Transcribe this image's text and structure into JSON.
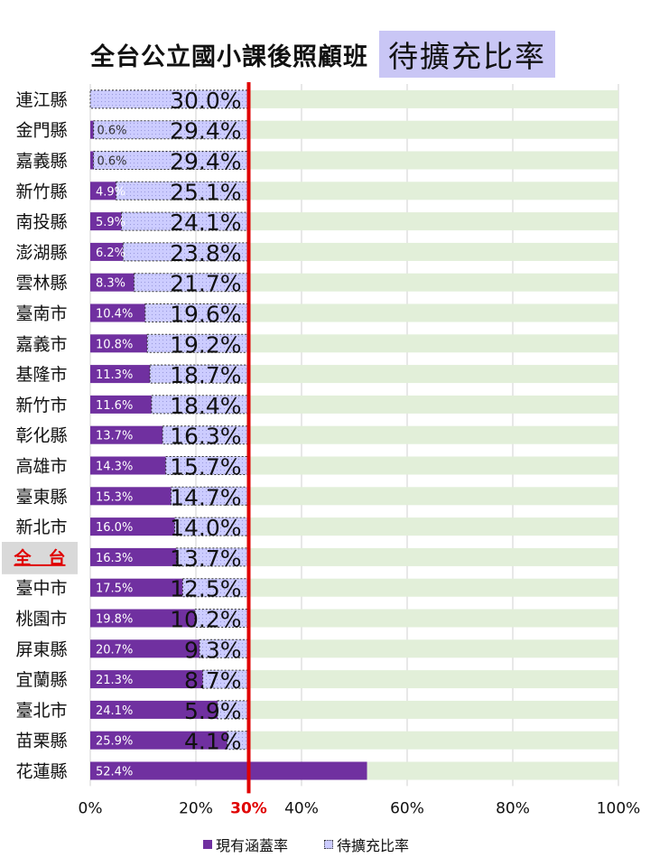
{
  "title": {
    "main": "全台公立國小課後照顧班",
    "highlight": "待擴充比率"
  },
  "colors": {
    "current": "#7030a0",
    "expand": "#ccccff",
    "track": "#e2efd9",
    "target_line": "#e00000",
    "highlight_bg": "#c9c6f5",
    "total_row_bg": "#d9d9d9",
    "total_label": "#e00000"
  },
  "chart_data": {
    "type": "bar",
    "orientation": "horizontal",
    "stacked": true,
    "categories": [
      "連江縣",
      "金門縣",
      "嘉義縣",
      "新竹縣",
      "南投縣",
      "澎湖縣",
      "雲林縣",
      "臺南市",
      "嘉義市",
      "基隆市",
      "新竹市",
      "彰化縣",
      "高雄市",
      "臺東縣",
      "新北市",
      "全　台",
      "臺中市",
      "桃園市",
      "屏東縣",
      "宜蘭縣",
      "臺北市",
      "苗栗縣",
      "花蓮縣"
    ],
    "highlight_category": "全　台",
    "series": [
      {
        "name": "現有涵蓋率",
        "values": [
          0.0,
          0.6,
          0.6,
          4.9,
          5.9,
          6.2,
          8.3,
          10.4,
          10.8,
          11.3,
          11.6,
          13.7,
          14.3,
          15.3,
          16.0,
          16.3,
          17.5,
          19.8,
          20.7,
          21.3,
          24.1,
          25.9,
          52.4
        ],
        "labels": [
          "",
          "0.6%",
          "0.6%",
          "4.9%",
          "5.9%",
          "6.2%",
          "8.3%",
          "10.4%",
          "10.8%",
          "11.3%",
          "11.6%",
          "13.7%",
          "14.3%",
          "15.3%",
          "16.0%",
          "16.3%",
          "17.5%",
          "19.8%",
          "20.7%",
          "21.3%",
          "24.1%",
          "25.9%",
          "52.4%"
        ]
      },
      {
        "name": "待擴充比率",
        "values": [
          30.0,
          29.4,
          29.4,
          25.1,
          24.1,
          23.8,
          21.7,
          19.6,
          19.2,
          18.7,
          18.4,
          16.3,
          15.7,
          14.7,
          14.0,
          13.7,
          12.5,
          10.2,
          9.3,
          8.7,
          5.9,
          4.1,
          0
        ],
        "labels": [
          "30.0%",
          "29.4%",
          "29.4%",
          "25.1%",
          "24.1%",
          "23.8%",
          "21.7%",
          "19.6%",
          "19.2%",
          "18.7%",
          "18.4%",
          "16.3%",
          "15.7%",
          "14.7%",
          "14.0%",
          "13.7%",
          "12.5%",
          "10.2%",
          "9.3%",
          "8.7%",
          "5.9%",
          "4.1%",
          ""
        ]
      }
    ],
    "x_ticks": [
      {
        "value": 0,
        "label": "0%"
      },
      {
        "value": 20,
        "label": "20%"
      },
      {
        "value": 30,
        "label": "30%"
      },
      {
        "value": 40,
        "label": "40%"
      },
      {
        "value": 60,
        "label": "60%"
      },
      {
        "value": 80,
        "label": "80%"
      },
      {
        "value": 100,
        "label": "100%"
      }
    ],
    "xlim": [
      0,
      100
    ],
    "target_value": 30,
    "legend_position": "bottom",
    "gridlines": true
  }
}
